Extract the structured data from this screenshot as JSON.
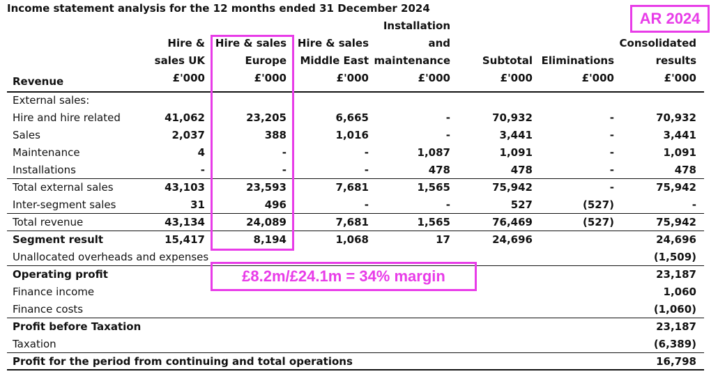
{
  "title": "Income statement analysis for the 12 months ended 31 December 2024",
  "badge": "AR 2024",
  "annotation": "£8.2m/£24.1m = 34% margin",
  "revenue_label": "Revenue",
  "accent_color": "#e83ce8",
  "columns": [
    {
      "lines": [
        "Hire &",
        "sales UK",
        "£'000"
      ]
    },
    {
      "lines": [
        "Hire & sales",
        "Europe",
        "£'000"
      ]
    },
    {
      "lines": [
        "Hire & sales",
        "Middle East",
        "£'000"
      ]
    },
    {
      "lines": [
        "Installation",
        "and",
        "maintenance",
        "£'000"
      ]
    },
    {
      "lines": [
        "Subtotal",
        "£'000"
      ]
    },
    {
      "lines": [
        "Eliminations",
        "£'000"
      ]
    },
    {
      "lines": [
        "Consolidated",
        "results",
        "£'000"
      ]
    }
  ],
  "rows": [
    {
      "label": "External sales:",
      "values": [
        "",
        "",
        "",
        "",
        "",
        "",
        ""
      ]
    },
    {
      "label": "Hire and hire related",
      "values": [
        "41,062",
        "23,205",
        "6,665",
        "-",
        "70,932",
        "-",
        "70,932"
      ]
    },
    {
      "label": "Sales",
      "values": [
        "2,037",
        "388",
        "1,016",
        "-",
        "3,441",
        "-",
        "3,441"
      ]
    },
    {
      "label": "Maintenance",
      "values": [
        "4",
        "-",
        "-",
        "1,087",
        "1,091",
        "-",
        "1,091"
      ]
    },
    {
      "label": "Installations",
      "values": [
        "-",
        "-",
        "-",
        "478",
        "478",
        "-",
        "478"
      ]
    },
    {
      "label": "Total external sales",
      "values": [
        "43,103",
        "23,593",
        "7,681",
        "1,565",
        "75,942",
        "-",
        "75,942"
      ]
    },
    {
      "label": "Inter-segment sales",
      "values": [
        "31",
        "496",
        "-",
        "-",
        "527",
        "(527)",
        "-"
      ]
    },
    {
      "label": "Total revenue",
      "values": [
        "43,134",
        "24,089",
        "7,681",
        "1,565",
        "76,469",
        "(527)",
        "75,942"
      ]
    },
    {
      "label": "Segment result",
      "values": [
        "15,417",
        "8,194",
        "1,068",
        "17",
        "24,696",
        "",
        "24,696"
      ]
    },
    {
      "label": "Unallocated overheads and expenses",
      "values": [
        "",
        "",
        "",
        "",
        "",
        "",
        "(1,509)"
      ]
    },
    {
      "label": "Operating profit",
      "values": [
        "",
        "",
        "",
        "",
        "",
        "",
        "23,187"
      ]
    },
    {
      "label": "Finance income",
      "values": [
        "",
        "",
        "",
        "",
        "",
        "",
        "1,060"
      ]
    },
    {
      "label": "Finance costs",
      "values": [
        "",
        "",
        "",
        "",
        "",
        "",
        "(1,060)"
      ]
    },
    {
      "label": "Profit before Taxation",
      "values": [
        "",
        "",
        "",
        "",
        "",
        "",
        "23,187"
      ]
    },
    {
      "label": "Taxation",
      "values": [
        "",
        "",
        "",
        "",
        "",
        "",
        "(6,389)"
      ]
    },
    {
      "label": "Profit for the period from continuing and total operations",
      "values": [
        "",
        "",
        "",
        "",
        "",
        "",
        "16,798"
      ]
    }
  ]
}
